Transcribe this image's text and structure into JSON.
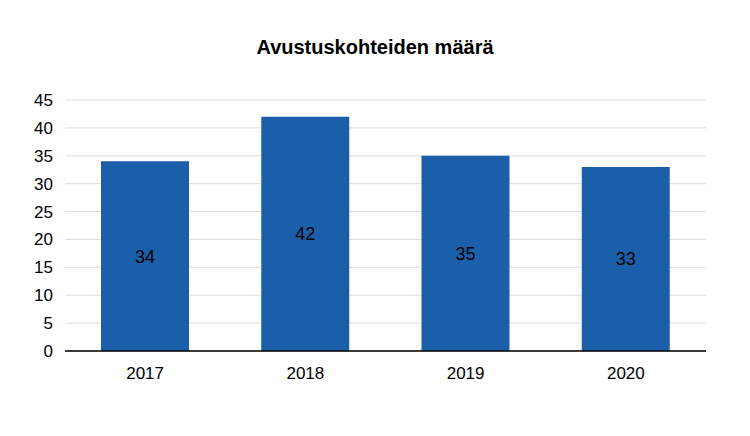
{
  "chart_data": {
    "type": "bar",
    "title": "Avustuskohteiden määrä",
    "categories": [
      "2017",
      "2018",
      "2019",
      "2020"
    ],
    "values": [
      34,
      42,
      35,
      33
    ],
    "color": "#1b5faa",
    "ylim": [
      0,
      45
    ],
    "yticks": [
      0,
      5,
      10,
      15,
      20,
      25,
      30,
      35,
      40,
      45
    ],
    "grid": true,
    "data_labels": true
  }
}
